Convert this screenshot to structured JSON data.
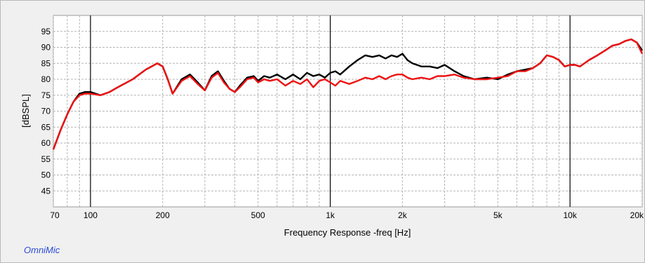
{
  "brand": "OmniMic",
  "chart_data": {
    "type": "line",
    "xlabel": "Frequency Response -freq [Hz]",
    "ylabel": "[dBSPL]",
    "xscale": "log",
    "xlim": [
      70,
      20000
    ],
    "ylim": [
      40,
      100
    ],
    "grid": true,
    "x_ticks": [
      {
        "value": 70,
        "label": "70"
      },
      {
        "value": 100,
        "label": "100"
      },
      {
        "value": 200,
        "label": "200"
      },
      {
        "value": 500,
        "label": "500"
      },
      {
        "value": 1000,
        "label": "1k"
      },
      {
        "value": 2000,
        "label": "2k"
      },
      {
        "value": 5000,
        "label": "5k"
      },
      {
        "value": 10000,
        "label": "10k"
      },
      {
        "value": 20000,
        "label": "20k"
      }
    ],
    "y_ticks": [
      45,
      50,
      55,
      60,
      65,
      70,
      75,
      80,
      85,
      90,
      95
    ],
    "decade_lines": [
      100,
      1000,
      10000
    ],
    "series": [
      {
        "color": "#000000",
        "x": [
          70,
          75,
          80,
          85,
          90,
          95,
          100,
          110,
          120,
          130,
          150,
          170,
          190,
          200,
          210,
          220,
          240,
          260,
          280,
          300,
          320,
          340,
          360,
          380,
          400,
          420,
          450,
          480,
          500,
          530,
          560,
          600,
          650,
          700,
          750,
          800,
          850,
          900,
          950,
          1000,
          1050,
          1100,
          1200,
          1300,
          1400,
          1500,
          1600,
          1700,
          1800,
          1900,
          2000,
          2100,
          2200,
          2400,
          2600,
          2800,
          3000,
          3300,
          3600,
          4000,
          4500,
          5000,
          5500,
          6000,
          6500,
          7000,
          7500,
          8000,
          8500,
          9000,
          9500,
          10000,
          10500,
          11000,
          12000,
          13000,
          14000,
          15000,
          16000,
          17000,
          18000,
          19000,
          20000
        ],
        "y": [
          58,
          64,
          69,
          73,
          75.5,
          76,
          76,
          75,
          76,
          77.5,
          80,
          83,
          85,
          84,
          80,
          75.5,
          80,
          81.5,
          79,
          76.5,
          81,
          82.5,
          79.5,
          77,
          76,
          78,
          80.5,
          81,
          79.5,
          81,
          80.5,
          81.5,
          80,
          81.5,
          80,
          82,
          81,
          81.5,
          80.5,
          82,
          82.5,
          81.5,
          84,
          86,
          87.5,
          87,
          87.5,
          86.5,
          87.5,
          87,
          88,
          86,
          85,
          84,
          84,
          83.5,
          84.5,
          82.5,
          81,
          80,
          80.5,
          80,
          81.5,
          82.5,
          83,
          83.5,
          85,
          87.5,
          87,
          86,
          84,
          84.5,
          84.5,
          84,
          86,
          87.5,
          89,
          90.5,
          91,
          92,
          92.5,
          91.5,
          89
        ]
      },
      {
        "color": "#ee1111",
        "x": [
          70,
          75,
          80,
          85,
          90,
          95,
          100,
          110,
          120,
          130,
          150,
          170,
          190,
          200,
          210,
          220,
          240,
          260,
          280,
          300,
          320,
          340,
          360,
          380,
          400,
          420,
          450,
          480,
          500,
          530,
          560,
          600,
          650,
          700,
          750,
          800,
          850,
          900,
          950,
          1000,
          1050,
          1100,
          1200,
          1300,
          1400,
          1500,
          1600,
          1700,
          1800,
          1900,
          2000,
          2100,
          2200,
          2400,
          2600,
          2800,
          3000,
          3300,
          3600,
          4000,
          4500,
          5000,
          5500,
          6000,
          6500,
          7000,
          7500,
          8000,
          8500,
          9000,
          9500,
          10000,
          10500,
          11000,
          12000,
          13000,
          14000,
          15000,
          16000,
          17000,
          18000,
          19000,
          20000
        ],
        "y": [
          58,
          64,
          69,
          73,
          75,
          75.5,
          75.5,
          75,
          76,
          77.5,
          80,
          83,
          85,
          84,
          80,
          75.5,
          79.5,
          81,
          78.5,
          76.5,
          80.5,
          82,
          79,
          77,
          76,
          77.5,
          80,
          80.5,
          79,
          80,
          79.5,
          80,
          78,
          79.5,
          78.5,
          80,
          77.5,
          79.5,
          80,
          79,
          78,
          79.5,
          78.5,
          79.5,
          80.5,
          80,
          81,
          80,
          81,
          81.5,
          81.5,
          80.5,
          80,
          80.5,
          80,
          81,
          81,
          81.5,
          80.5,
          80,
          80,
          80.5,
          81,
          82.5,
          82.5,
          83.5,
          85,
          87.5,
          87,
          86,
          84,
          84.5,
          84.5,
          84,
          86,
          87.5,
          89,
          90.5,
          91,
          92,
          92.5,
          91.5,
          88
        ]
      }
    ]
  }
}
